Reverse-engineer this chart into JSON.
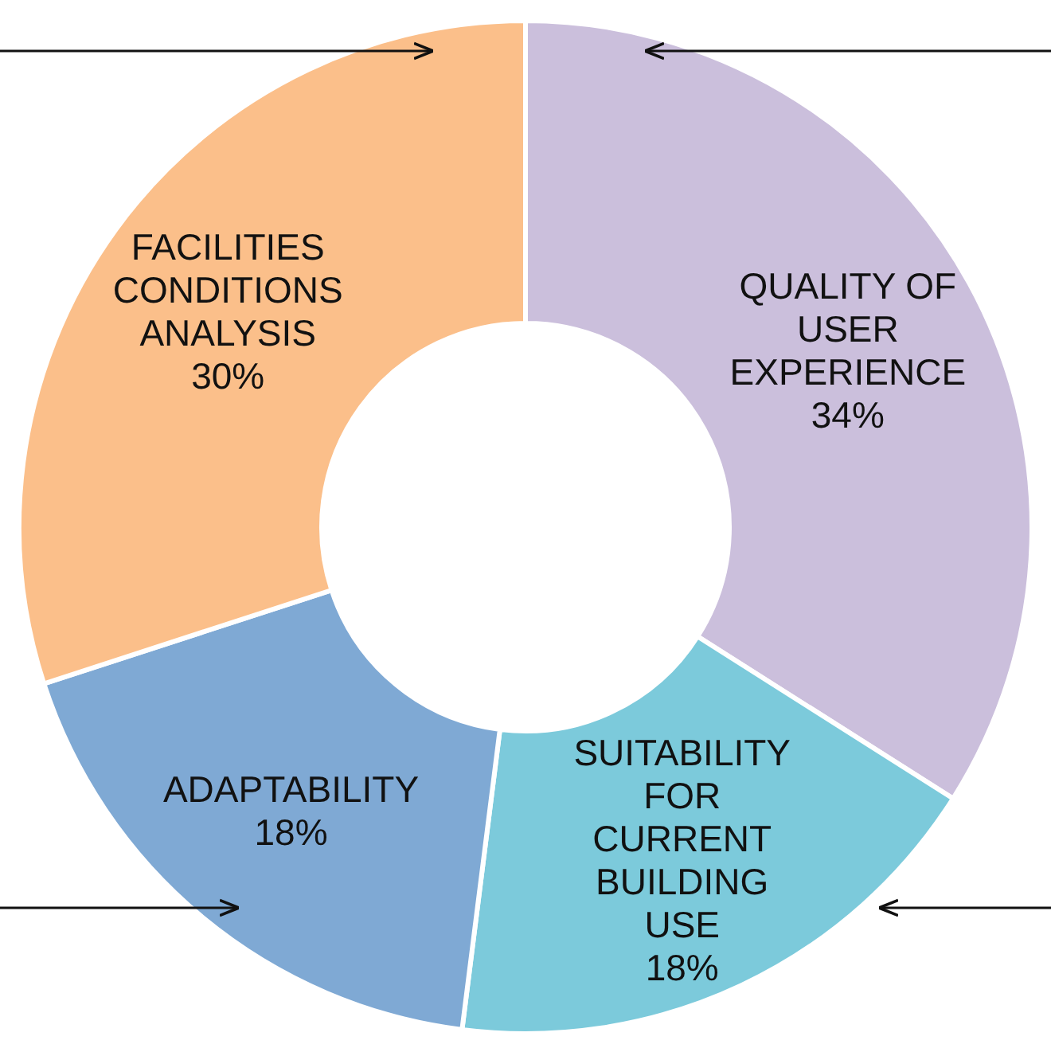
{
  "chart_data": {
    "type": "donut",
    "categories": [
      "QUALITY OF USER EXPERIENCE",
      "SUITABILITY FOR CURRENT BUILDING USE",
      "ADAPTABILITY",
      "FACILITIES CONDITIONS ANALYSIS"
    ],
    "values": [
      34,
      18,
      18,
      30
    ],
    "value_labels": [
      "34%",
      "18%",
      "18%",
      "30%"
    ],
    "colors": [
      "#cbbfdc",
      "#7ccadb",
      "#7fa9d4",
      "#fbbf8a"
    ]
  }
}
